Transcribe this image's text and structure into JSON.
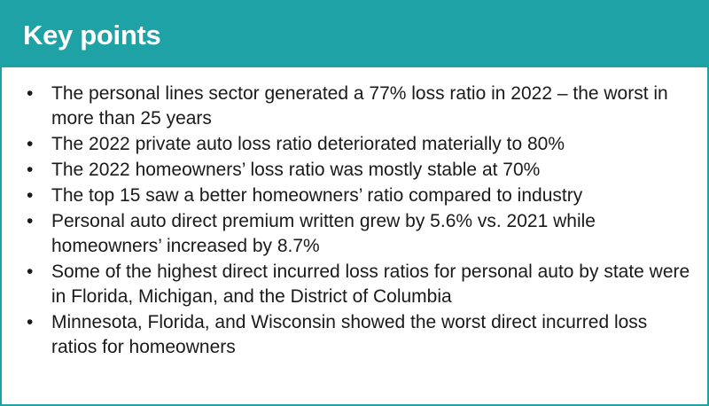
{
  "header": {
    "title": "Key points"
  },
  "colors": {
    "accent": "#1fa2a6",
    "text": "#1a1a1a"
  },
  "bullet_glyph": "•",
  "points": [
    "The personal lines sector generated a 77% loss ratio in 2022 – the worst in more than 25 years",
    "The 2022 private auto loss ratio deteriorated materially to 80%",
    "The 2022 homeowners’ loss ratio was mostly stable at 70%",
    "The top 15 saw a better homeowners’ ratio compared to industry",
    "Personal auto direct premium written grew by 5.6% vs. 2021 while homeowners’ increased by 8.7%",
    "Some of the highest direct incurred loss ratios for personal auto by state were in Florida, Michigan, and the District of Columbia",
    "Minnesota, Florida, and Wisconsin showed the worst direct incurred loss ratios for homeowners"
  ]
}
